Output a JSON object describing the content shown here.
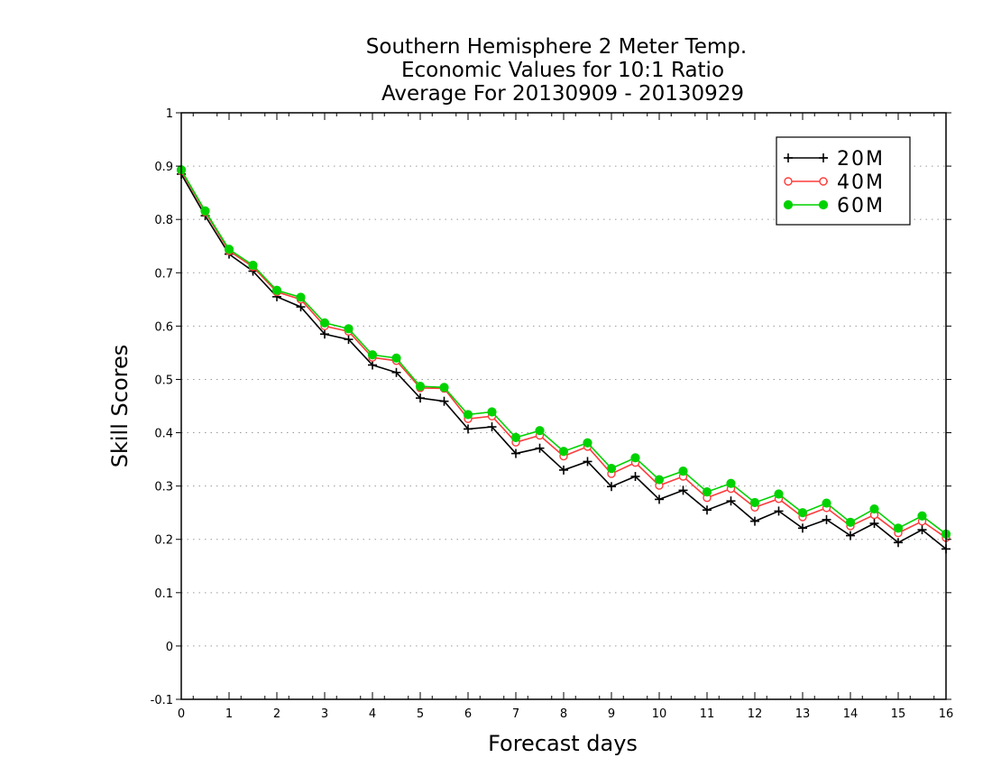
{
  "chart_data": {
    "type": "line",
    "title": [
      "Southern Hemisphere 2 Meter Temp.",
      "Economic Values for 10:1 Ratio",
      "Average For 20130909 - 20130929"
    ],
    "xlabel": "Forecast days",
    "ylabel": "Skill Scores",
    "xlim": [
      0,
      16
    ],
    "ylim": [
      -0.1,
      1
    ],
    "x_ticks": [
      "0",
      "1",
      "2",
      "3",
      "4",
      "5",
      "6",
      "7",
      "8",
      "9",
      "10",
      "11",
      "12",
      "13",
      "14",
      "15",
      "16"
    ],
    "y_ticks": [
      "-0.1",
      "0",
      "0.1",
      "0.2",
      "0.3",
      "0.4",
      "0.5",
      "0.6",
      "0.7",
      "0.8",
      "0.9",
      "1"
    ],
    "grid": "horizontal dotted",
    "legend_position": "top-right",
    "x": [
      0,
      0.5,
      1,
      1.5,
      2,
      2.5,
      3,
      3.5,
      4,
      4.5,
      5,
      5.5,
      6,
      6.5,
      7,
      7.5,
      8,
      8.5,
      9,
      9.5,
      10,
      10.5,
      11,
      11.5,
      12,
      12.5,
      13,
      13.5,
      14,
      14.5,
      15,
      15.5,
      16
    ],
    "series": [
      {
        "name": "20M",
        "color": "#000000",
        "marker": "plus",
        "values": [
          0.885,
          0.807,
          0.735,
          0.703,
          0.655,
          0.636,
          0.585,
          0.575,
          0.527,
          0.513,
          0.465,
          0.459,
          0.407,
          0.411,
          0.361,
          0.371,
          0.33,
          0.346,
          0.299,
          0.318,
          0.275,
          0.292,
          0.255,
          0.272,
          0.234,
          0.253,
          0.221,
          0.237,
          0.207,
          0.23,
          0.194,
          0.218,
          0.182
        ]
      },
      {
        "name": "40M",
        "color": "#ff3b3b",
        "marker": "open-circle",
        "values": [
          0.891,
          0.814,
          0.741,
          0.711,
          0.664,
          0.65,
          0.6,
          0.59,
          0.541,
          0.535,
          0.484,
          0.483,
          0.426,
          0.431,
          0.382,
          0.395,
          0.356,
          0.374,
          0.323,
          0.344,
          0.301,
          0.318,
          0.278,
          0.295,
          0.26,
          0.276,
          0.242,
          0.259,
          0.225,
          0.246,
          0.212,
          0.234,
          0.203
        ]
      },
      {
        "name": "60M",
        "color": "#00d200",
        "marker": "filled-circle",
        "values": [
          0.893,
          0.816,
          0.744,
          0.714,
          0.667,
          0.654,
          0.606,
          0.595,
          0.546,
          0.54,
          0.487,
          0.485,
          0.434,
          0.439,
          0.391,
          0.404,
          0.365,
          0.381,
          0.333,
          0.353,
          0.312,
          0.328,
          0.289,
          0.305,
          0.269,
          0.285,
          0.25,
          0.268,
          0.232,
          0.257,
          0.221,
          0.244,
          0.21
        ]
      }
    ]
  }
}
